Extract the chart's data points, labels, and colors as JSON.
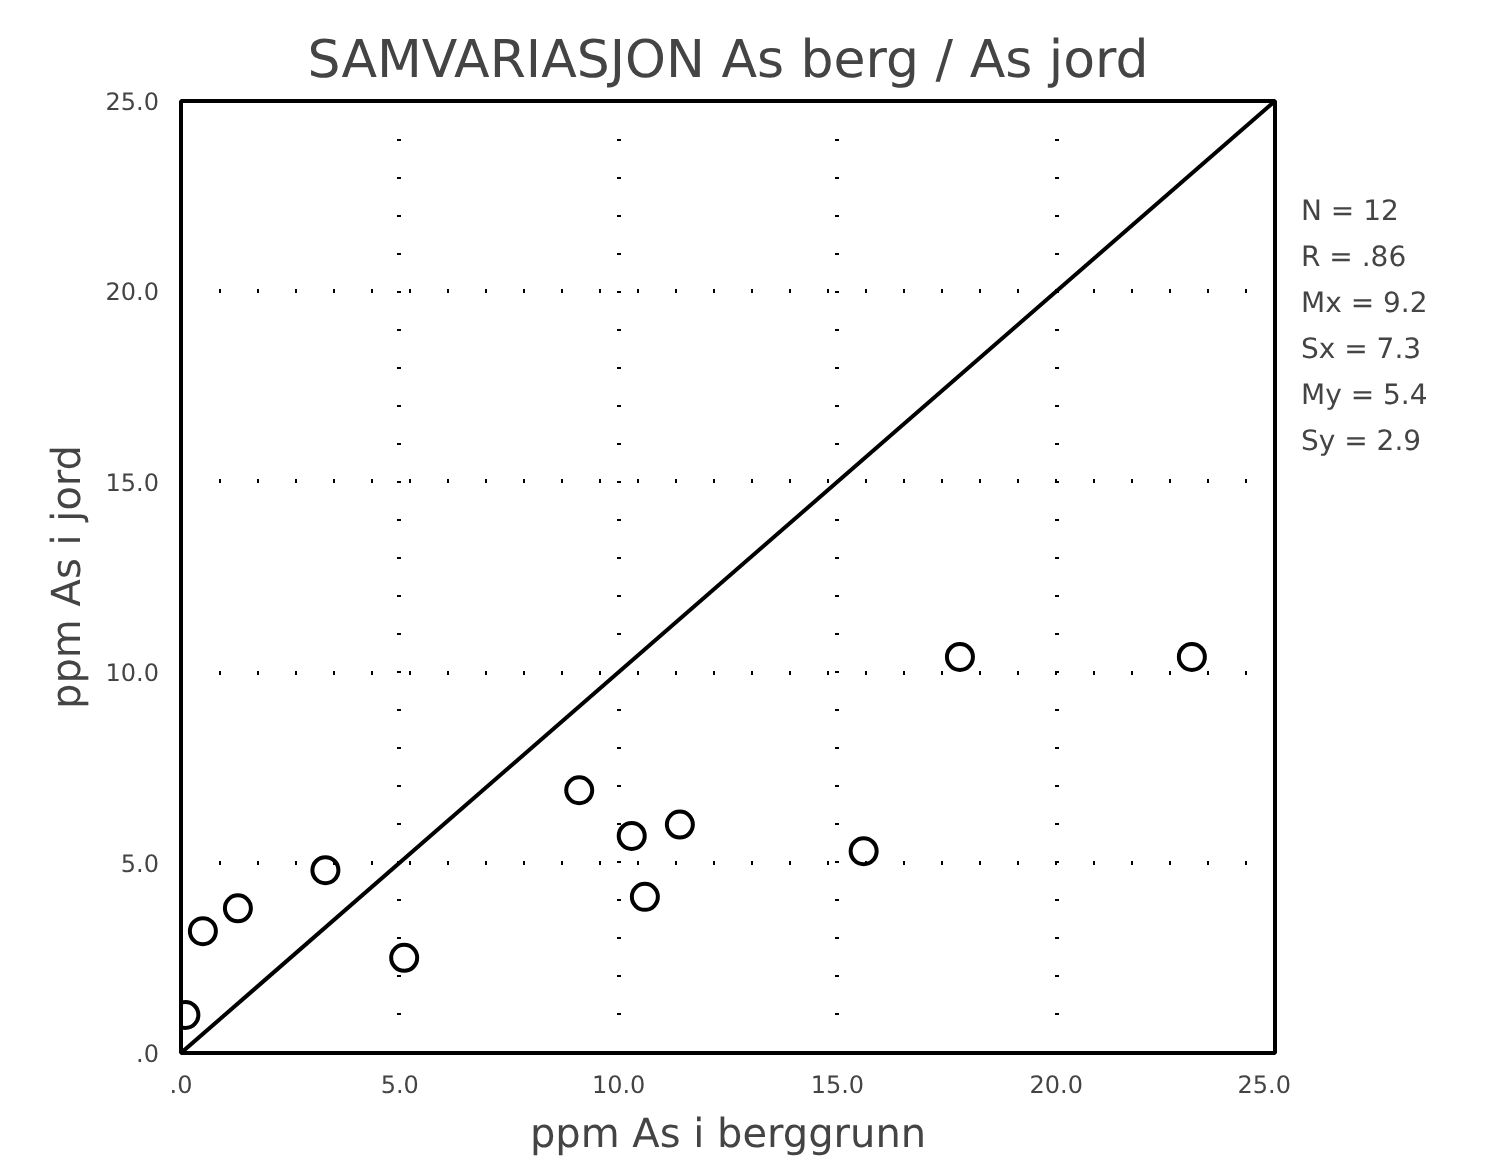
{
  "chart_data": {
    "type": "scatter",
    "title": "SAMVARIASJON As berg / As jord",
    "xlabel": "ppm As i berggrunn",
    "ylabel": "ppm As i jord",
    "xlim": [
      0,
      25
    ],
    "ylim": [
      0,
      25
    ],
    "xticks": [
      {
        "value": 0,
        "label": ".0"
      },
      {
        "value": 5,
        "label": "5.0"
      },
      {
        "value": 10,
        "label": "10.0"
      },
      {
        "value": 15,
        "label": "15.0"
      },
      {
        "value": 20,
        "label": "20.0"
      },
      {
        "value": 25,
        "label": "25.0"
      }
    ],
    "yticks": [
      {
        "value": 0,
        "label": ".0"
      },
      {
        "value": 5,
        "label": "5.0"
      },
      {
        "value": 10,
        "label": "10.0"
      },
      {
        "value": 15,
        "label": "15.0"
      },
      {
        "value": 20,
        "label": "20.0"
      },
      {
        "value": 25,
        "label": "25.0"
      }
    ],
    "grid": true,
    "series": [
      {
        "marker": "circle",
        "color": "#000000",
        "x": [
          0.1,
          0.5,
          1.3,
          3.3,
          5.1,
          9.1,
          10.3,
          10.6,
          11.4,
          15.6,
          17.8,
          23.1
        ],
        "values": [
          1.0,
          3.2,
          3.8,
          4.8,
          2.5,
          6.9,
          5.7,
          4.1,
          6.0,
          5.3,
          10.4,
          10.4
        ]
      },
      {
        "type": "line",
        "color": "#000000",
        "x": [
          0,
          25
        ],
        "values": [
          0,
          25
        ]
      }
    ],
    "annotations": [
      "N =  12",
      "R =  .86",
      "Mx =  9.2",
      "Sx =  7.3",
      "My =  5.4",
      "Sy =  2.9"
    ]
  }
}
